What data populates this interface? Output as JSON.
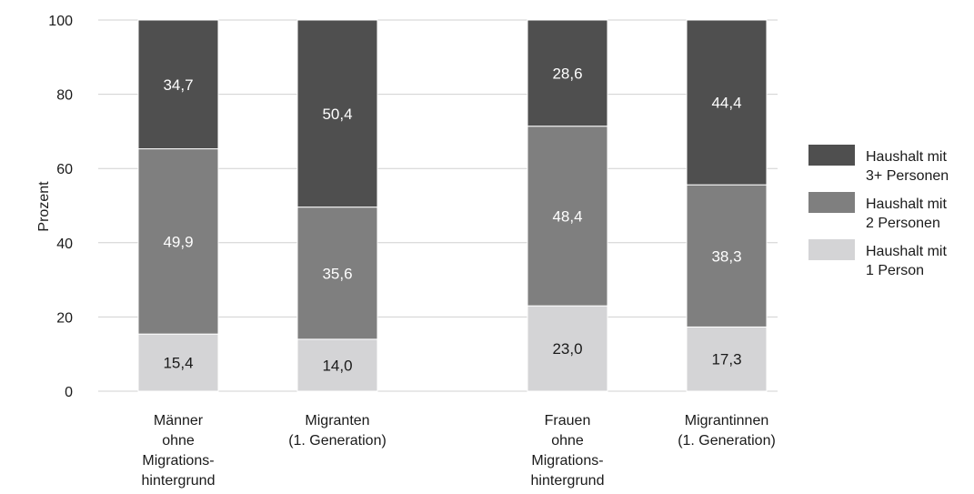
{
  "chart_data": {
    "type": "bar",
    "stacked": true,
    "ylabel": "Prozent",
    "ylim": [
      0,
      100
    ],
    "yticks": [
      0,
      20,
      40,
      60,
      80,
      100
    ],
    "grid": true,
    "legend_position": "right",
    "categories": [
      [
        "Männer",
        "ohne",
        "Migrations-",
        "hintergrund"
      ],
      [
        "Migranten",
        "(1. Generation)"
      ],
      [
        "Frauen",
        "ohne",
        "Migrations-",
        "hintergrund"
      ],
      [
        "Migrantinnen",
        "(1. Generation)"
      ]
    ],
    "series": [
      {
        "name": [
          "Haushalt mit",
          "1 Person"
        ],
        "color": "#d4d4d6",
        "values": [
          15.4,
          14.0,
          23.0,
          17.3
        ],
        "labels": [
          "15,4",
          "14,0",
          "23,0",
          "17,3"
        ],
        "label_color": "#1a1a1a"
      },
      {
        "name": [
          "Haushalt mit",
          "2 Personen"
        ],
        "color": "#7f7f7f",
        "values": [
          49.9,
          35.6,
          48.4,
          38.3
        ],
        "labels": [
          "49,9",
          "35,6",
          "48,4",
          "38,3"
        ],
        "label_color": "#ffffff"
      },
      {
        "name": [
          "Haushalt mit",
          "3+ Personen"
        ],
        "color": "#4f4f4f",
        "values": [
          34.7,
          50.4,
          28.6,
          44.4
        ],
        "labels": [
          "34,7",
          "50,4",
          "28,6",
          "44,4"
        ],
        "label_color": "#ffffff"
      }
    ],
    "legend_order": [
      2,
      1,
      0
    ]
  }
}
